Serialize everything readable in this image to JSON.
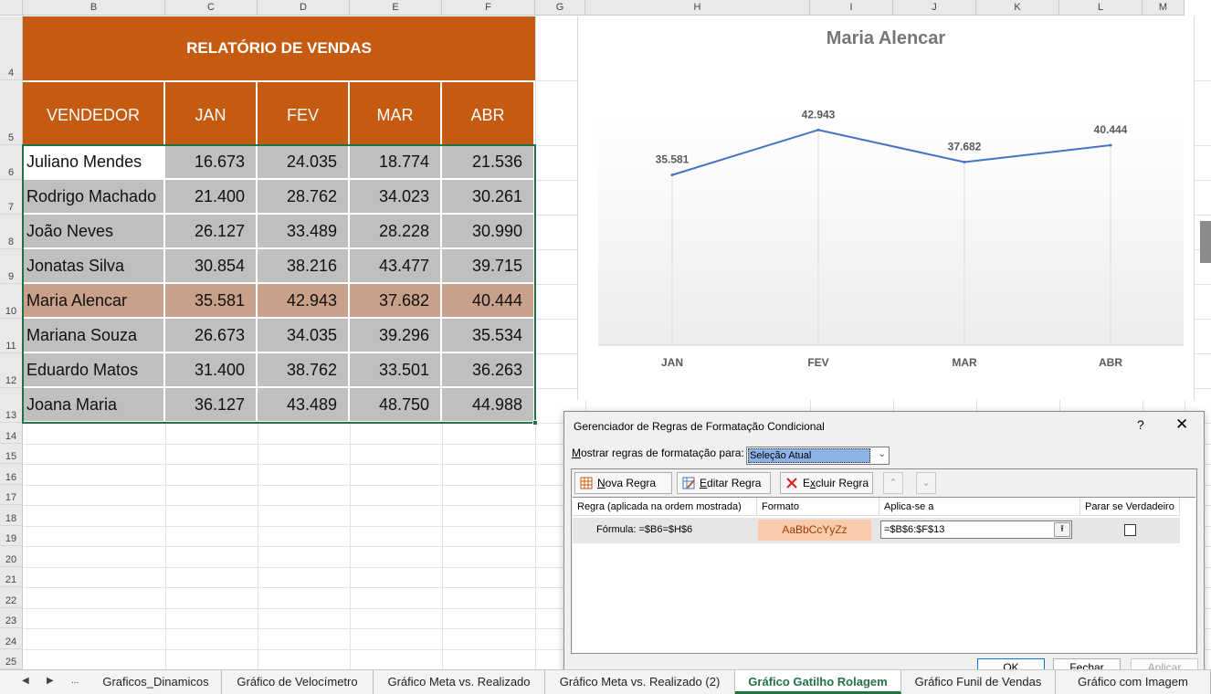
{
  "columns": [
    "B",
    "C",
    "D",
    "E",
    "F",
    "G",
    "H",
    "I",
    "J",
    "K",
    "L",
    "M"
  ],
  "rows": [
    "4",
    "5",
    "6",
    "7",
    "8",
    "9",
    "10",
    "11",
    "12",
    "13",
    "14",
    "15",
    "16",
    "17",
    "18",
    "19",
    "20",
    "21",
    "22",
    "23",
    "24",
    "25"
  ],
  "report": {
    "title": "RELATÓRIO DE VENDAS",
    "headers": [
      "VENDEDOR",
      "JAN",
      "FEV",
      "MAR",
      "ABR"
    ],
    "data": [
      {
        "name": "Juliano Mendes",
        "values": [
          "16.673",
          "24.035",
          "18.774",
          "21.536"
        ]
      },
      {
        "name": "Rodrigo Machado",
        "values": [
          "21.400",
          "28.762",
          "34.023",
          "30.261"
        ]
      },
      {
        "name": "João Neves",
        "values": [
          "26.127",
          "33.489",
          "28.228",
          "30.990"
        ]
      },
      {
        "name": "Jonatas Silva",
        "values": [
          "30.854",
          "38.216",
          "43.477",
          "39.715"
        ]
      },
      {
        "name": "Maria Alencar",
        "values": [
          "35.581",
          "42.943",
          "37.682",
          "40.444"
        ]
      },
      {
        "name": "Mariana Souza",
        "values": [
          "26.673",
          "34.035",
          "39.296",
          "35.534"
        ]
      },
      {
        "name": "Eduardo Matos",
        "values": [
          "31.400",
          "38.762",
          "33.501",
          "36.263"
        ]
      },
      {
        "name": "Joana Maria",
        "values": [
          "36.127",
          "43.489",
          "48.750",
          "44.988"
        ]
      }
    ],
    "highlight_row": 4
  },
  "chart_data": {
    "type": "line",
    "title": "Maria Alencar",
    "categories": [
      "JAN",
      "FEV",
      "MAR",
      "ABR"
    ],
    "series": [
      {
        "values": [
          35581,
          42943,
          37682,
          40444
        ],
        "labels": [
          "35.581",
          "42.943",
          "37.682",
          "40.444"
        ]
      }
    ],
    "line_color": "#4472c4",
    "ylim": [
      0,
      50000
    ],
    "grid": false,
    "legend": "none"
  },
  "dialog": {
    "title": "Gerenciador de Regras de Formatação Condicional",
    "help": "?",
    "close": "✕",
    "show_label_key": "M",
    "show_label_rest": "ostrar regras de formatação para:",
    "show_value": "Seleção Atual",
    "buttons": {
      "new_key": "N",
      "new_rest": "ova Regra",
      "edit_key": "E",
      "edit_rest": "ditar Regra",
      "delete_key": "x",
      "delete_pre": "E",
      "delete_rest": "cluir Regra"
    },
    "list_headers": [
      "Regra (aplicada na ordem mostrada)",
      "Formato",
      "Aplica-se a",
      "Parar se Verdadeiro"
    ],
    "rule": {
      "formula": "Fórmula: =$B6=$H$6",
      "preview": "AaBbCcYyZz",
      "applies_to": "=$B$6:$F$13",
      "stop_if_true": false
    },
    "ok": "OK",
    "close_btn": "Fechar",
    "apply": "Aplicar"
  },
  "sheet_tabs": {
    "nav": [
      "◀",
      "▶",
      "..."
    ],
    "tabs": [
      "Graficos_Dinamicos",
      "Gráfico de Velocímetro",
      "Gráfico Meta vs. Realizado",
      "Gráfico Meta vs. Realizado (2)",
      "Gráfico Gatilho Rolagem",
      "Gráfico Funil de Vendas",
      "Gráfico com Imagem"
    ],
    "active": 4
  },
  "colors": {
    "header_fill": "#c55a11",
    "cell_fill": "#bfbfbf",
    "highlight_fill": "#c9a08a",
    "format_preview": "#f8cbad",
    "accent": "#217346"
  }
}
